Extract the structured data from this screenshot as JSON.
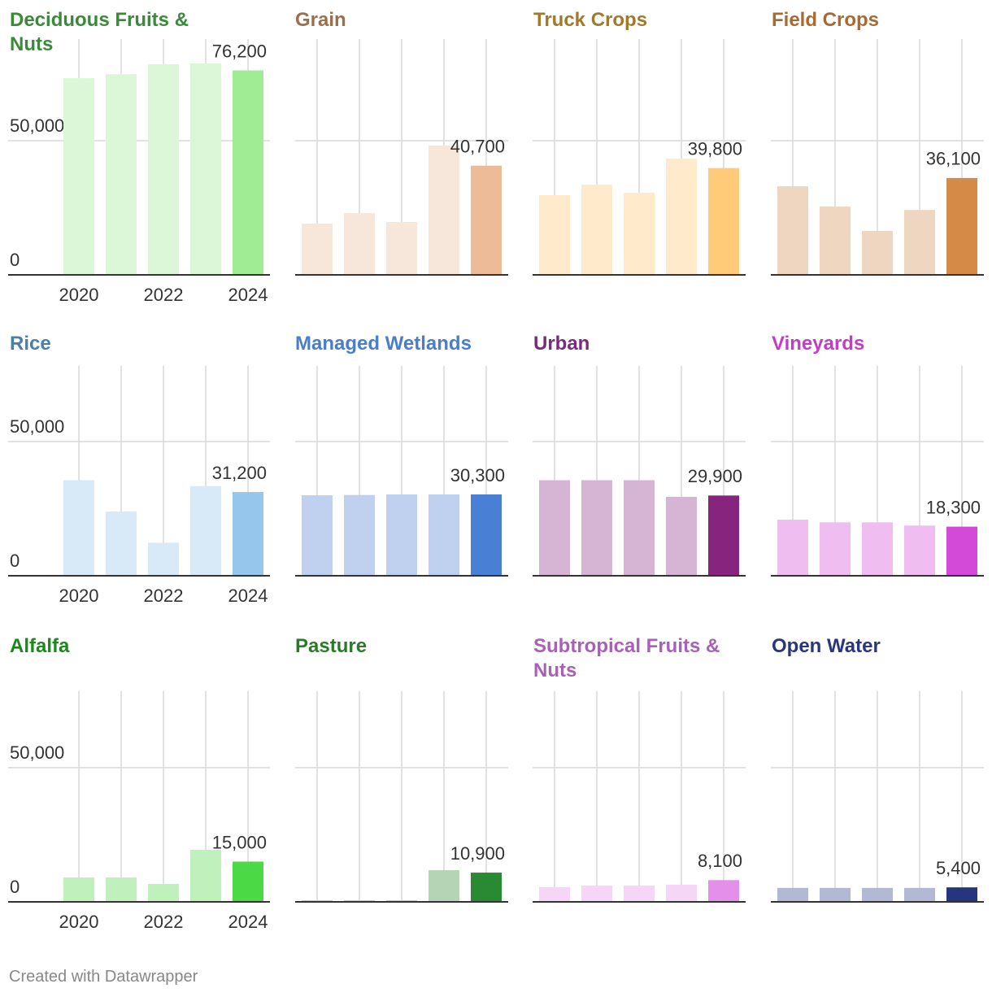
{
  "chart_data": {
    "type": "bar",
    "categories": [
      "2020",
      null,
      "2022",
      null,
      "2024"
    ],
    "ylim": [
      0,
      80000
    ],
    "yticks": [
      0,
      {
        "value": 50000,
        "label": "50,000"
      }
    ],
    "footer": "Created with Datawrapper",
    "panels": [
      {
        "title": "Deciduous Fruits & Nuts",
        "title_color": "#3a8a3a",
        "color": "#dcf7d8",
        "highlight_color": "#a0ec94",
        "values": [
          73300,
          74800,
          78500,
          78800,
          76200
        ],
        "value_labels": [
          null,
          null,
          null,
          null,
          "76,200"
        ]
      },
      {
        "title": "Grain",
        "title_color": "#9c6e4c",
        "color": "#f7e6da",
        "highlight_color": "#edbb97",
        "values": [
          19100,
          23000,
          19700,
          48200,
          40700
        ],
        "value_labels": [
          null,
          null,
          null,
          null,
          "40,700"
        ]
      },
      {
        "title": "Truck Crops",
        "title_color": "#a07a2a",
        "color": "#ffebcb",
        "highlight_color": "#ffcb78",
        "values": [
          29700,
          33600,
          30600,
          43300,
          39800
        ],
        "value_labels": [
          null,
          null,
          null,
          null,
          "39,800"
        ]
      },
      {
        "title": "Field Crops",
        "title_color": "#a86a30",
        "color": "#efd6c0",
        "highlight_color": "#d68a48",
        "values": [
          33000,
          25500,
          16400,
          24200,
          36100
        ],
        "value_labels": [
          null,
          null,
          null,
          null,
          "36,100"
        ]
      },
      {
        "title": "Rice",
        "title_color": "#4a7fa8",
        "color": "#d8e9f8",
        "highlight_color": "#96c6ec",
        "values": [
          35600,
          23900,
          12300,
          33400,
          31200
        ],
        "value_labels": [
          null,
          null,
          null,
          null,
          "31,200"
        ]
      },
      {
        "title": "Managed Wetlands",
        "title_color": "#4a7ec9",
        "color": "#c0d0ef",
        "highlight_color": "#4a7fd6",
        "values": [
          30000,
          30100,
          30300,
          30300,
          30300
        ],
        "value_labels": [
          null,
          null,
          null,
          null,
          "30,300"
        ]
      },
      {
        "title": "Urban",
        "title_color": "#7a2a7a",
        "color": "#d6b4d4",
        "highlight_color": "#87257e",
        "values": [
          35600,
          35600,
          35600,
          29400,
          29900
        ],
        "value_labels": [
          null,
          null,
          null,
          null,
          "29,900"
        ]
      },
      {
        "title": "Vineyards",
        "title_color": "#c33cc9",
        "color": "#efbdef",
        "highlight_color": "#d349d8",
        "values": [
          20900,
          19900,
          19900,
          18700,
          18300
        ],
        "value_labels": [
          null,
          null,
          null,
          null,
          "18,300"
        ]
      },
      {
        "title": "Alfalfa",
        "title_color": "#1a8a1a",
        "color": "#c0f0bc",
        "highlight_color": "#4bd945",
        "values": [
          9100,
          9100,
          6700,
          19400,
          15000
        ],
        "value_labels": [
          null,
          null,
          null,
          null,
          "15,000"
        ]
      },
      {
        "title": "Pasture",
        "title_color": "#2a7a2a",
        "color": "#b5d4b5",
        "highlight_color": "#2a8a34",
        "values": [
          600,
          600,
          600,
          11800,
          10900
        ],
        "value_labels": [
          null,
          null,
          null,
          null,
          "10,900"
        ]
      },
      {
        "title": "Subtropical Fruits & Nuts",
        "title_color": "#a860b8",
        "color": "#f6d6f6",
        "highlight_color": "#e490ea",
        "values": [
          5500,
          6100,
          6100,
          6400,
          8100
        ],
        "value_labels": [
          null,
          null,
          null,
          null,
          "8,100"
        ]
      },
      {
        "title": "Open Water",
        "title_color": "#2a3580",
        "color": "#b3b8d4",
        "highlight_color": "#25357e",
        "values": [
          5200,
          5200,
          5200,
          5200,
          5400
        ],
        "value_labels": [
          null,
          null,
          null,
          null,
          "5,400"
        ]
      }
    ]
  }
}
